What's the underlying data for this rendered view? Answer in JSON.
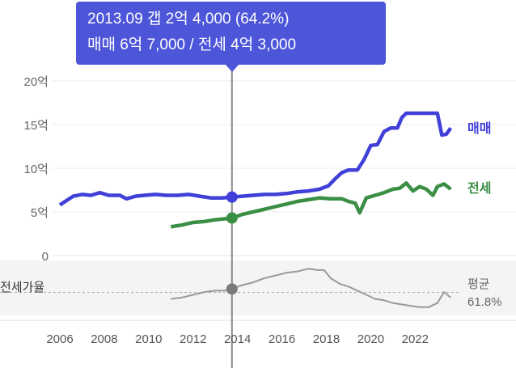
{
  "tooltip": {
    "line1": "2013.09  갭 2억 4,000 (64.2%)",
    "line2": "매매 6억 7,000 / 전세 4억 3,000"
  },
  "chart_data": {
    "type": "line",
    "x_ticks": [
      "2006",
      "2008",
      "2010",
      "2012",
      "2014",
      "2016",
      "2018",
      "2020",
      "2022"
    ],
    "y_ticks": [
      {
        "value": 0,
        "label": "0"
      },
      {
        "value": 5,
        "label": "5억"
      },
      {
        "value": 10,
        "label": "10억"
      },
      {
        "value": 15,
        "label": "15억"
      },
      {
        "value": 20,
        "label": "20억"
      }
    ],
    "ylim": [
      0,
      21
    ],
    "xlim": [
      2006,
      2023.7
    ],
    "colors": {
      "sale": "#4040d9",
      "jeonse": "#3a8f45",
      "ratio": "#999999",
      "highlight": "#7a7a7a"
    },
    "highlight": {
      "x": 2013.75,
      "sale": 6.7,
      "jeonse": 4.3,
      "ratio": 64.2
    },
    "series": [
      {
        "name": "매매",
        "points": [
          [
            2006.0,
            5.8
          ],
          [
            2006.3,
            6.3
          ],
          [
            2006.6,
            6.8
          ],
          [
            2007.0,
            7.0
          ],
          [
            2007.4,
            6.9
          ],
          [
            2007.8,
            7.2
          ],
          [
            2008.2,
            6.9
          ],
          [
            2008.7,
            6.9
          ],
          [
            2009.0,
            6.5
          ],
          [
            2009.4,
            6.8
          ],
          [
            2009.8,
            6.9
          ],
          [
            2010.3,
            7.0
          ],
          [
            2010.8,
            6.9
          ],
          [
            2011.3,
            6.9
          ],
          [
            2011.8,
            7.0
          ],
          [
            2012.3,
            6.8
          ],
          [
            2012.8,
            6.6
          ],
          [
            2013.3,
            6.6
          ],
          [
            2013.75,
            6.7
          ],
          [
            2014.2,
            6.8
          ],
          [
            2014.7,
            6.9
          ],
          [
            2015.2,
            7.0
          ],
          [
            2015.7,
            7.0
          ],
          [
            2016.2,
            7.1
          ],
          [
            2016.7,
            7.3
          ],
          [
            2017.2,
            7.4
          ],
          [
            2017.7,
            7.6
          ],
          [
            2018.1,
            8.0
          ],
          [
            2018.4,
            8.8
          ],
          [
            2018.7,
            9.5
          ],
          [
            2019.0,
            9.8
          ],
          [
            2019.4,
            9.8
          ],
          [
            2019.7,
            11.0
          ],
          [
            2020.0,
            12.6
          ],
          [
            2020.3,
            12.7
          ],
          [
            2020.6,
            14.2
          ],
          [
            2020.9,
            14.6
          ],
          [
            2021.2,
            14.6
          ],
          [
            2021.4,
            15.8
          ],
          [
            2021.6,
            16.3
          ],
          [
            2022.0,
            16.3
          ],
          [
            2022.5,
            16.3
          ],
          [
            2023.0,
            16.3
          ],
          [
            2023.2,
            13.8
          ],
          [
            2023.4,
            13.9
          ],
          [
            2023.6,
            14.6
          ]
        ]
      },
      {
        "name": "전세",
        "points": [
          [
            2011.0,
            3.3
          ],
          [
            2011.5,
            3.5
          ],
          [
            2012.0,
            3.8
          ],
          [
            2012.5,
            3.9
          ],
          [
            2013.0,
            4.1
          ],
          [
            2013.4,
            4.2
          ],
          [
            2013.75,
            4.3
          ],
          [
            2014.2,
            4.7
          ],
          [
            2014.7,
            5.0
          ],
          [
            2015.2,
            5.3
          ],
          [
            2015.7,
            5.6
          ],
          [
            2016.2,
            5.9
          ],
          [
            2016.7,
            6.2
          ],
          [
            2017.2,
            6.4
          ],
          [
            2017.7,
            6.6
          ],
          [
            2018.2,
            6.5
          ],
          [
            2018.7,
            6.5
          ],
          [
            2019.0,
            6.2
          ],
          [
            2019.3,
            6.0
          ],
          [
            2019.5,
            4.9
          ],
          [
            2019.8,
            6.6
          ],
          [
            2020.2,
            6.9
          ],
          [
            2020.6,
            7.2
          ],
          [
            2021.0,
            7.6
          ],
          [
            2021.3,
            7.7
          ],
          [
            2021.6,
            8.3
          ],
          [
            2021.9,
            7.4
          ],
          [
            2022.2,
            7.9
          ],
          [
            2022.5,
            7.6
          ],
          [
            2022.8,
            6.9
          ],
          [
            2023.0,
            7.9
          ],
          [
            2023.3,
            8.2
          ],
          [
            2023.6,
            7.6
          ]
        ]
      },
      {
        "name": "전세가율",
        "points": [
          [
            2011.0,
            57
          ],
          [
            2011.5,
            58
          ],
          [
            2012.0,
            60
          ],
          [
            2012.5,
            62
          ],
          [
            2013.0,
            63
          ],
          [
            2013.4,
            63
          ],
          [
            2013.75,
            64.2
          ],
          [
            2014.2,
            67
          ],
          [
            2014.7,
            69
          ],
          [
            2015.2,
            72
          ],
          [
            2015.7,
            74
          ],
          [
            2016.2,
            76
          ],
          [
            2016.7,
            77
          ],
          [
            2017.2,
            79
          ],
          [
            2017.6,
            78
          ],
          [
            2017.9,
            78
          ],
          [
            2018.2,
            72
          ],
          [
            2018.6,
            68
          ],
          [
            2019.0,
            66
          ],
          [
            2019.4,
            63
          ],
          [
            2019.8,
            60
          ],
          [
            2020.2,
            57
          ],
          [
            2020.6,
            56
          ],
          [
            2021.0,
            54
          ],
          [
            2021.4,
            53
          ],
          [
            2021.8,
            52
          ],
          [
            2022.2,
            51
          ],
          [
            2022.6,
            51
          ],
          [
            2023.0,
            54
          ],
          [
            2023.3,
            62
          ],
          [
            2023.6,
            58
          ]
        ]
      }
    ],
    "ratio_axis": {
      "label": "전세가율",
      "average_label": "평균",
      "average_value": "61.8%",
      "average": 61.8,
      "range": [
        45,
        85
      ]
    }
  }
}
